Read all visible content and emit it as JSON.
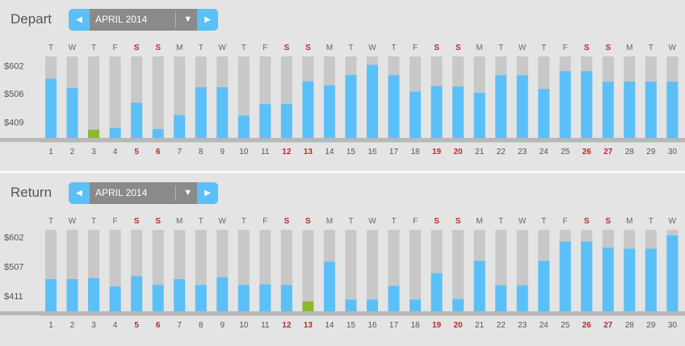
{
  "month": "APRIL 2014",
  "icons": {
    "prev": "caret-left-icon",
    "next": "caret-right-icon",
    "dropdown": "triangle-down-icon"
  },
  "colors": {
    "accent": "#5bc0f8",
    "cheapest": "#8ab82e",
    "weekend": "#bb2b2b",
    "bar_background": "#c8c8c8"
  },
  "days": [
    "1",
    "2",
    "3",
    "4",
    "5",
    "6",
    "7",
    "8",
    "9",
    "10",
    "11",
    "12",
    "13",
    "14",
    "15",
    "16",
    "17",
    "18",
    "19",
    "20",
    "21",
    "22",
    "23",
    "24",
    "25",
    "26",
    "27",
    "28",
    "29",
    "30"
  ],
  "weekdays": [
    "T",
    "W",
    "T",
    "F",
    "S",
    "S",
    "M",
    "T",
    "W",
    "T",
    "F",
    "S",
    "S",
    "M",
    "T",
    "W",
    "T",
    "F",
    "S",
    "S",
    "M",
    "T",
    "W",
    "T",
    "F",
    "S",
    "S",
    "M",
    "T",
    "W"
  ],
  "weekend_days": [
    5,
    6,
    12,
    13,
    19,
    20,
    26,
    27
  ],
  "depart": {
    "title": "Depart",
    "chart_data": {
      "type": "bar",
      "categories": [
        "1",
        "2",
        "3",
        "4",
        "5",
        "6",
        "7",
        "8",
        "9",
        "10",
        "11",
        "12",
        "13",
        "14",
        "15",
        "16",
        "17",
        "18",
        "19",
        "20",
        "21",
        "22",
        "23",
        "24",
        "25",
        "26",
        "27",
        "28",
        "29",
        "30"
      ],
      "values": [
        557,
        525,
        383,
        389,
        475,
        385,
        433,
        528,
        528,
        431,
        470,
        471,
        548,
        534,
        570,
        604,
        569,
        513,
        532,
        530,
        509,
        569,
        569,
        522,
        583,
        583,
        547,
        547,
        547,
        547
      ],
      "ytick_labels": [
        "$602",
        "$506",
        "$409"
      ],
      "ytick_values": [
        602,
        506,
        409
      ],
      "ylim": [
        355,
        633
      ],
      "highlight": "cheapest-day-3"
    }
  },
  "return": {
    "title": "Return",
    "chart_data": {
      "type": "bar",
      "categories": [
        "1",
        "2",
        "3",
        "4",
        "5",
        "6",
        "7",
        "8",
        "9",
        "10",
        "11",
        "12",
        "13",
        "14",
        "15",
        "16",
        "17",
        "18",
        "19",
        "20",
        "21",
        "22",
        "23",
        "24",
        "25",
        "26",
        "27",
        "28",
        "29",
        "30"
      ],
      "values": [
        466,
        466,
        469,
        442,
        475,
        447,
        466,
        447,
        472,
        447,
        449,
        447,
        394,
        522,
        400,
        400,
        444,
        400,
        485,
        402,
        525,
        446,
        446,
        525,
        587,
        587,
        568,
        564,
        564,
        607
      ],
      "ytick_labels": [
        "$602",
        "$507",
        "$411"
      ],
      "ytick_values": [
        602,
        507,
        411
      ],
      "ylim": [
        362,
        625
      ],
      "highlight": "cheapest-day-13"
    }
  }
}
